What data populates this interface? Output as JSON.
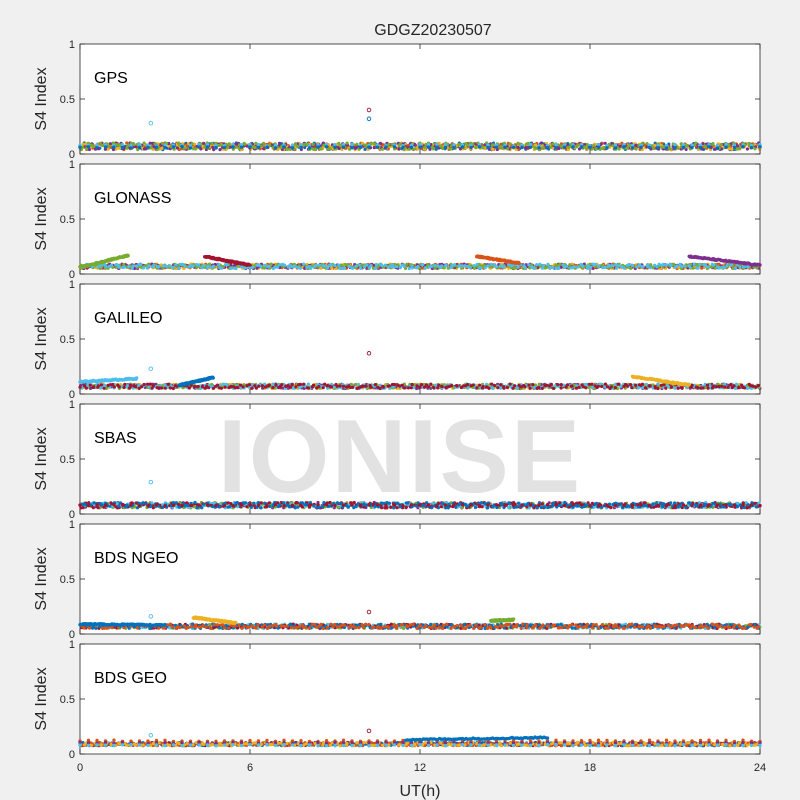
{
  "title": "GDGZ20230507",
  "xlabel": "UT(h)",
  "watermark": "IONISE",
  "colors": [
    "#0072BD",
    "#D95319",
    "#EDB120",
    "#7E2F8E",
    "#77AC30",
    "#4DBEEE",
    "#A2142F"
  ],
  "chart_data": [
    {
      "type": "scatter",
      "panel": "GPS",
      "ylabel": "S4 Index",
      "xlim": [
        0,
        24
      ],
      "ylim": [
        0,
        1
      ],
      "xticks": [
        0,
        6,
        12,
        18,
        24
      ],
      "yticks": [
        0,
        0.5,
        1
      ],
      "baseline": 0.07,
      "noise": 0.03,
      "series": [
        {
          "x": [
            0,
            24
          ],
          "y": [
            0.07,
            0.07
          ]
        },
        {
          "x": [
            0,
            24
          ],
          "y": [
            0.08,
            0.08
          ]
        },
        {
          "x": [
            0,
            24
          ],
          "y": [
            0.06,
            0.06
          ]
        }
      ],
      "outliers": [
        {
          "x": 2.5,
          "y": 0.28
        },
        {
          "x": 10.2,
          "y": 0.4
        },
        {
          "x": 10.2,
          "y": 0.32
        }
      ]
    },
    {
      "type": "scatter",
      "panel": "GLONASS",
      "ylabel": "S4 Index",
      "xlim": [
        0,
        24
      ],
      "ylim": [
        0,
        1
      ],
      "xticks": [
        0,
        6,
        12,
        18,
        24
      ],
      "yticks": [
        0,
        0.5,
        1
      ],
      "baseline": 0.07,
      "noise": 0.02,
      "series": [
        {
          "x": [
            0,
            1.7
          ],
          "y": [
            0.06,
            0.17
          ]
        },
        {
          "x": [
            4.4,
            6.0
          ],
          "y": [
            0.16,
            0.08
          ]
        },
        {
          "x": [
            14.0,
            15.5
          ],
          "y": [
            0.16,
            0.1
          ]
        },
        {
          "x": [
            21.5,
            24.0
          ],
          "y": [
            0.16,
            0.08
          ]
        }
      ],
      "outliers": []
    },
    {
      "type": "scatter",
      "panel": "GALILEO",
      "ylabel": "S4 Index",
      "xlim": [
        0,
        24
      ],
      "ylim": [
        0,
        1
      ],
      "xticks": [
        0,
        6,
        12,
        18,
        24
      ],
      "yticks": [
        0,
        0.5,
        1
      ],
      "baseline": 0.07,
      "noise": 0.02,
      "series": [
        {
          "x": [
            0,
            2.0
          ],
          "y": [
            0.11,
            0.14
          ]
        },
        {
          "x": [
            3.5,
            4.7
          ],
          "y": [
            0.08,
            0.15
          ]
        },
        {
          "x": [
            19.5,
            21.5
          ],
          "y": [
            0.16,
            0.08
          ]
        }
      ],
      "outliers": [
        {
          "x": 2.5,
          "y": 0.23
        },
        {
          "x": 10.2,
          "y": 0.37
        }
      ]
    },
    {
      "type": "scatter",
      "panel": "SBAS",
      "ylabel": "S4 Index",
      "xlim": [
        0,
        24
      ],
      "ylim": [
        0,
        1
      ],
      "xticks": [
        0,
        6,
        12,
        18,
        24
      ],
      "yticks": [
        0,
        0.5,
        1
      ],
      "baseline": 0.08,
      "noise": 0.025,
      "series": [
        {
          "x": [
            0,
            24
          ],
          "y": [
            0.08,
            0.08
          ]
        }
      ],
      "outliers": [
        {
          "x": 2.5,
          "y": 0.29
        }
      ]
    },
    {
      "type": "scatter",
      "panel": "BDS NGEO",
      "ylabel": "S4 Index",
      "xlim": [
        0,
        24
      ],
      "ylim": [
        0,
        1
      ],
      "xticks": [
        0,
        6,
        12,
        18,
        24
      ],
      "yticks": [
        0,
        0.5,
        1
      ],
      "baseline": 0.07,
      "noise": 0.02,
      "series": [
        {
          "x": [
            0,
            3.0
          ],
          "y": [
            0.09,
            0.08
          ]
        },
        {
          "x": [
            4.0,
            5.5
          ],
          "y": [
            0.15,
            0.1
          ]
        },
        {
          "x": [
            14.5,
            15.3
          ],
          "y": [
            0.12,
            0.13
          ]
        }
      ],
      "outliers": [
        {
          "x": 2.5,
          "y": 0.16
        },
        {
          "x": 10.2,
          "y": 0.2
        }
      ]
    },
    {
      "type": "scatter",
      "panel": "BDS GEO",
      "ylabel": "S4 Index",
      "xlim": [
        0,
        24
      ],
      "ylim": [
        0,
        1
      ],
      "xticks": [
        0,
        6,
        12,
        18,
        24
      ],
      "yticks": [
        0,
        0.5,
        1
      ],
      "baseline": 0.09,
      "noise": 0.015,
      "series": [
        {
          "x": [
            0,
            24
          ],
          "y": [
            0.12,
            0.12
          ]
        },
        {
          "x": [
            0,
            24
          ],
          "y": [
            0.1,
            0.1
          ]
        },
        {
          "x": [
            0,
            24
          ],
          "y": [
            0.08,
            0.08
          ]
        },
        {
          "x": [
            11.5,
            16.5
          ],
          "y": [
            0.13,
            0.15
          ]
        }
      ],
      "outliers": [
        {
          "x": 2.5,
          "y": 0.17
        },
        {
          "x": 10.2,
          "y": 0.21
        }
      ]
    }
  ]
}
